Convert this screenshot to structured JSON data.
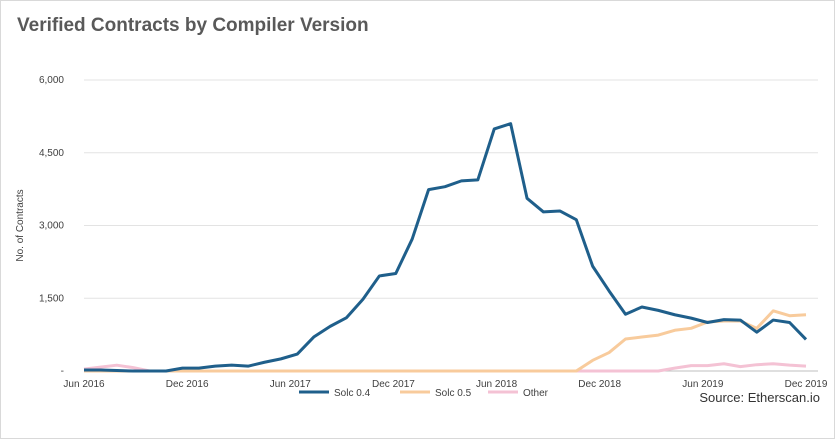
{
  "title": "Verified Contracts by Compiler Version",
  "source": "Source: Etherscan.io",
  "chart_data": {
    "type": "line",
    "title": "Verified Contracts by Compiler Version",
    "xlabel": "",
    "ylabel": "No. of Contracts",
    "ylim": [
      0,
      6000
    ],
    "yticks": [
      0,
      1500,
      3000,
      4500,
      6000
    ],
    "ytick_labels": [
      "-",
      "1,500",
      "3,000",
      "4,500",
      "6,000"
    ],
    "xticks": [
      "Jun 2016",
      "Dec 2016",
      "Jun 2017",
      "Dec 2017",
      "Jun 2018",
      "Dec 2018",
      "Jun 2019",
      "Dec 2019"
    ],
    "legend_position": "bottom",
    "grid": "horizontal",
    "series": [
      {
        "name": "Solc 0.4",
        "color": "#1f5f8b",
        "values": [
          20,
          20,
          10,
          0,
          0,
          0,
          60,
          60,
          100,
          120,
          100,
          180,
          250,
          350,
          700,
          920,
          1100,
          1480,
          1960,
          2010,
          2720,
          3740,
          3800,
          3920,
          3940,
          4990,
          5100,
          3560,
          3280,
          3300,
          3120,
          2160,
          1650,
          1170,
          1320,
          1250,
          1160,
          1090,
          1000,
          1060,
          1050,
          800,
          1050,
          1000,
          650
        ]
      },
      {
        "name": "Solc 0.5",
        "color": "#f8cb9c",
        "values": [
          0,
          0,
          0,
          0,
          0,
          0,
          0,
          0,
          0,
          0,
          0,
          0,
          0,
          0,
          0,
          0,
          0,
          0,
          0,
          0,
          0,
          0,
          0,
          0,
          0,
          0,
          0,
          0,
          0,
          0,
          0,
          220,
          380,
          660,
          700,
          740,
          840,
          880,
          1010,
          1030,
          1030,
          880,
          1240,
          1140,
          1160
        ]
      },
      {
        "name": "Other",
        "color": "#f4c2d4",
        "values": [
          40,
          80,
          120,
          70,
          0,
          0,
          0,
          0,
          0,
          0,
          0,
          0,
          0,
          0,
          0,
          0,
          0,
          0,
          0,
          0,
          0,
          0,
          0,
          0,
          0,
          0,
          0,
          0,
          0,
          0,
          0,
          0,
          0,
          0,
          0,
          0,
          60,
          110,
          110,
          150,
          90,
          130,
          150,
          120,
          100
        ]
      }
    ]
  }
}
